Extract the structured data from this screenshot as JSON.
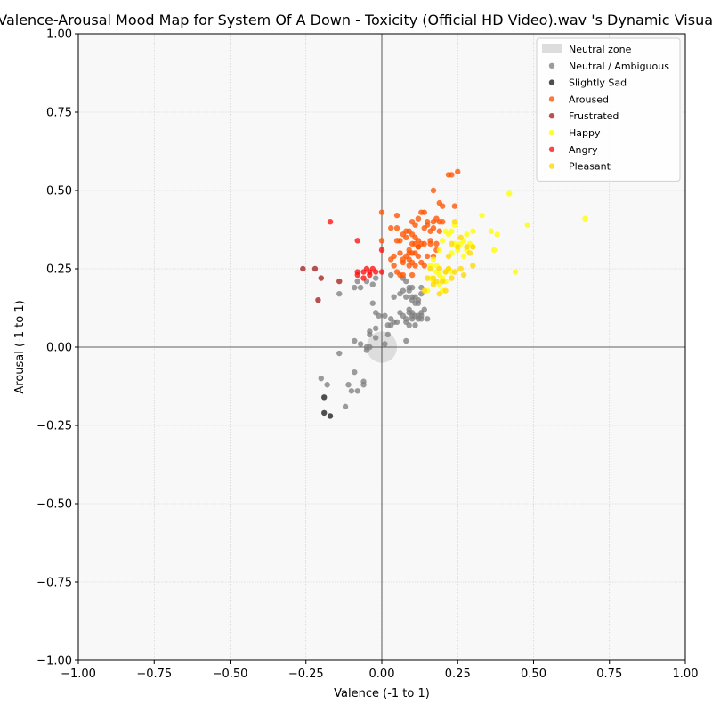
{
  "chart_data": {
    "type": "scatter",
    "title": "Valence-Arousal Mood Map for System Of A Down - Toxicity (Official HD Video).wav 's Dynamic Visualization",
    "xlabel": "Valence (-1 to 1)",
    "ylabel": "Arousal (-1 to 1)",
    "xlim": [
      -1,
      1
    ],
    "ylim": [
      -1,
      1
    ],
    "xticks": [
      -1.0,
      -0.75,
      -0.5,
      -0.25,
      0.0,
      0.25,
      0.5,
      0.75,
      1.0
    ],
    "yticks": [
      -1.0,
      -0.75,
      -0.5,
      -0.25,
      0.0,
      0.25,
      0.5,
      0.75,
      1.0
    ],
    "xtick_labels": [
      "−1.00",
      "−0.75",
      "−0.50",
      "−0.25",
      "0.00",
      "0.25",
      "0.50",
      "0.75",
      "1.00"
    ],
    "ytick_labels": [
      "−1.00",
      "−0.75",
      "−0.50",
      "−0.25",
      "0.00",
      "0.25",
      "0.50",
      "0.75",
      "1.00"
    ],
    "grid": true,
    "legend_position": "top-right",
    "neutral_zone": {
      "label": "Neutral zone",
      "center": [
        0,
        0
      ],
      "radius": 0.05
    },
    "series": [
      {
        "name": "Neutral / Ambiguous",
        "color": "#808080",
        "points": [
          [
            -0.2,
            -0.1
          ],
          [
            -0.18,
            -0.12
          ],
          [
            -0.14,
            -0.02
          ],
          [
            -0.12,
            -0.19
          ],
          [
            -0.11,
            -0.12
          ],
          [
            -0.1,
            -0.14
          ],
          [
            -0.09,
            -0.08
          ],
          [
            -0.08,
            -0.14
          ],
          [
            -0.06,
            -0.12
          ],
          [
            -0.06,
            -0.11
          ],
          [
            -0.09,
            0.02
          ],
          [
            -0.07,
            0.01
          ],
          [
            -0.05,
            0.0
          ],
          [
            -0.05,
            -0.01
          ],
          [
            -0.04,
            0.0
          ],
          [
            -0.04,
            0.05
          ],
          [
            -0.04,
            0.04
          ],
          [
            -0.02,
            0.03
          ],
          [
            -0.02,
            0.06
          ],
          [
            -0.01,
            0.1
          ],
          [
            -0.02,
            0.11
          ],
          [
            -0.03,
            0.14
          ],
          [
            0.01,
            0.01
          ],
          [
            0.02,
            0.04
          ],
          [
            0.02,
            0.07
          ],
          [
            0.03,
            0.09
          ],
          [
            0.04,
            0.08
          ],
          [
            0.05,
            0.08
          ],
          [
            0.06,
            0.11
          ],
          [
            0.07,
            0.1
          ],
          [
            0.08,
            0.09
          ],
          [
            0.08,
            0.02
          ],
          [
            0.09,
            0.07
          ],
          [
            0.09,
            0.11
          ],
          [
            0.1,
            0.09
          ],
          [
            0.1,
            0.11
          ],
          [
            0.11,
            0.07
          ],
          [
            0.11,
            0.1
          ],
          [
            0.12,
            0.09
          ],
          [
            0.13,
            0.11
          ],
          [
            0.13,
            0.1
          ],
          [
            0.14,
            0.12
          ],
          [
            0.15,
            0.09
          ],
          [
            0.01,
            0.1
          ],
          [
            0.03,
            0.07
          ],
          [
            0.08,
            0.08
          ],
          [
            0.09,
            0.12
          ],
          [
            0.1,
            0.1
          ],
          [
            0.12,
            0.1
          ],
          [
            0.13,
            0.09
          ],
          [
            -0.14,
            0.17
          ],
          [
            -0.09,
            0.19
          ],
          [
            -0.07,
            0.19
          ],
          [
            -0.08,
            0.21
          ],
          [
            -0.05,
            0.21
          ],
          [
            -0.03,
            0.2
          ],
          [
            -0.02,
            0.22
          ],
          [
            0.03,
            0.23
          ],
          [
            0.04,
            0.16
          ],
          [
            0.06,
            0.17
          ],
          [
            0.07,
            0.18
          ],
          [
            0.08,
            0.16
          ],
          [
            0.09,
            0.19
          ],
          [
            0.1,
            0.19
          ],
          [
            0.1,
            0.16
          ],
          [
            0.11,
            0.14
          ],
          [
            0.12,
            0.14
          ],
          [
            0.12,
            0.15
          ],
          [
            0.13,
            0.17
          ],
          [
            0.13,
            0.19
          ],
          [
            0.08,
            0.21
          ],
          [
            0.09,
            0.18
          ],
          [
            0.1,
            0.15
          ],
          [
            0.11,
            0.16
          ],
          [
            0.07,
            0.22
          ]
        ]
      },
      {
        "name": "Slightly Sad",
        "color": "#1e1e1e",
        "points": [
          [
            -0.19,
            -0.16
          ],
          [
            -0.19,
            -0.21
          ],
          [
            -0.17,
            -0.22
          ]
        ]
      },
      {
        "name": "Aroused",
        "color": "#ff5500",
        "points": [
          [
            0.0,
            0.43
          ],
          [
            0.0,
            0.34
          ],
          [
            0.03,
            0.38
          ],
          [
            0.05,
            0.42
          ],
          [
            0.05,
            0.38
          ],
          [
            0.05,
            0.34
          ],
          [
            0.06,
            0.34
          ],
          [
            0.07,
            0.36
          ],
          [
            0.08,
            0.35
          ],
          [
            0.08,
            0.37
          ],
          [
            0.09,
            0.37
          ],
          [
            0.09,
            0.31
          ],
          [
            0.1,
            0.4
          ],
          [
            0.1,
            0.36
          ],
          [
            0.1,
            0.33
          ],
          [
            0.11,
            0.39
          ],
          [
            0.11,
            0.35
          ],
          [
            0.12,
            0.41
          ],
          [
            0.12,
            0.34
          ],
          [
            0.12,
            0.32
          ],
          [
            0.13,
            0.43
          ],
          [
            0.13,
            0.33
          ],
          [
            0.14,
            0.43
          ],
          [
            0.14,
            0.38
          ],
          [
            0.14,
            0.33
          ],
          [
            0.15,
            0.39
          ],
          [
            0.15,
            0.4
          ],
          [
            0.16,
            0.37
          ],
          [
            0.16,
            0.34
          ],
          [
            0.17,
            0.5
          ],
          [
            0.17,
            0.4
          ],
          [
            0.17,
            0.38
          ],
          [
            0.18,
            0.33
          ],
          [
            0.18,
            0.41
          ],
          [
            0.19,
            0.46
          ],
          [
            0.19,
            0.4
          ],
          [
            0.19,
            0.37
          ],
          [
            0.2,
            0.45
          ],
          [
            0.2,
            0.4
          ],
          [
            0.22,
            0.55
          ],
          [
            0.23,
            0.55
          ],
          [
            0.24,
            0.45
          ],
          [
            0.25,
            0.56
          ],
          [
            0.03,
            0.28
          ],
          [
            0.04,
            0.29
          ],
          [
            0.04,
            0.26
          ],
          [
            0.05,
            0.24
          ],
          [
            0.06,
            0.23
          ],
          [
            0.07,
            0.27
          ],
          [
            0.07,
            0.23
          ],
          [
            0.08,
            0.29
          ],
          [
            0.09,
            0.28
          ],
          [
            0.09,
            0.3
          ],
          [
            0.1,
            0.27
          ],
          [
            0.1,
            0.23
          ],
          [
            0.11,
            0.26
          ],
          [
            0.11,
            0.3
          ],
          [
            0.12,
            0.32
          ],
          [
            0.12,
            0.29
          ],
          [
            0.13,
            0.27
          ],
          [
            0.14,
            0.26
          ],
          [
            0.15,
            0.29
          ],
          [
            0.16,
            0.33
          ],
          [
            0.17,
            0.29
          ],
          [
            0.18,
            0.31
          ],
          [
            0.06,
            0.3
          ],
          [
            0.07,
            0.28
          ],
          [
            0.09,
            0.26
          ],
          [
            0.1,
            0.3
          ],
          [
            0.11,
            0.33
          ]
        ]
      },
      {
        "name": "Frustrated",
        "color": "#a52020",
        "points": [
          [
            -0.26,
            0.25
          ],
          [
            -0.22,
            0.25
          ],
          [
            -0.2,
            0.22
          ],
          [
            -0.21,
            0.15
          ],
          [
            -0.14,
            0.21
          ]
        ]
      },
      {
        "name": "Happy",
        "color": "#ffff00",
        "points": [
          [
            0.15,
            0.18
          ],
          [
            0.16,
            0.22
          ],
          [
            0.17,
            0.21
          ],
          [
            0.18,
            0.24
          ],
          [
            0.19,
            0.23
          ],
          [
            0.19,
            0.2
          ],
          [
            0.2,
            0.22
          ],
          [
            0.2,
            0.18
          ],
          [
            0.21,
            0.24
          ],
          [
            0.21,
            0.21
          ],
          [
            0.22,
            0.25
          ],
          [
            0.23,
            0.24
          ],
          [
            0.23,
            0.3
          ],
          [
            0.24,
            0.33
          ],
          [
            0.25,
            0.31
          ],
          [
            0.26,
            0.33
          ],
          [
            0.27,
            0.34
          ],
          [
            0.27,
            0.29
          ],
          [
            0.28,
            0.31
          ],
          [
            0.28,
            0.36
          ],
          [
            0.29,
            0.33
          ],
          [
            0.3,
            0.32
          ],
          [
            0.3,
            0.37
          ],
          [
            0.24,
            0.39
          ],
          [
            0.23,
            0.37
          ],
          [
            0.22,
            0.36
          ],
          [
            0.33,
            0.42
          ],
          [
            0.36,
            0.37
          ],
          [
            0.37,
            0.31
          ],
          [
            0.38,
            0.36
          ],
          [
            0.42,
            0.49
          ],
          [
            0.44,
            0.24
          ],
          [
            0.48,
            0.39
          ],
          [
            0.67,
            0.41
          ],
          [
            0.17,
            0.28
          ],
          [
            0.18,
            0.26
          ],
          [
            0.19,
            0.31
          ],
          [
            0.2,
            0.34
          ],
          [
            0.21,
            0.37
          ],
          [
            0.16,
            0.26
          ]
        ]
      },
      {
        "name": "Angry",
        "color": "#ff1010",
        "points": [
          [
            -0.17,
            0.4
          ],
          [
            -0.08,
            0.34
          ],
          [
            -0.08,
            0.24
          ],
          [
            -0.08,
            0.23
          ],
          [
            -0.06,
            0.22
          ],
          [
            -0.05,
            0.25
          ],
          [
            -0.04,
            0.24
          ],
          [
            -0.03,
            0.25
          ],
          [
            -0.02,
            0.24
          ],
          [
            0.0,
            0.31
          ],
          [
            0.0,
            0.24
          ],
          [
            -0.04,
            0.23
          ],
          [
            -0.06,
            0.24
          ]
        ]
      },
      {
        "name": "Pleasant",
        "color": "#ffd700",
        "points": [
          [
            0.14,
            0.18
          ],
          [
            0.16,
            0.25
          ],
          [
            0.17,
            0.22
          ],
          [
            0.18,
            0.21
          ],
          [
            0.19,
            0.25
          ],
          [
            0.2,
            0.21
          ],
          [
            0.21,
            0.24
          ],
          [
            0.22,
            0.25
          ],
          [
            0.23,
            0.22
          ],
          [
            0.24,
            0.24
          ],
          [
            0.25,
            0.32
          ],
          [
            0.26,
            0.25
          ],
          [
            0.27,
            0.23
          ],
          [
            0.28,
            0.32
          ],
          [
            0.29,
            0.3
          ],
          [
            0.3,
            0.26
          ],
          [
            0.3,
            0.32
          ],
          [
            0.23,
            0.33
          ],
          [
            0.22,
            0.29
          ],
          [
            0.21,
            0.18
          ],
          [
            0.19,
            0.17
          ],
          [
            0.17,
            0.2
          ],
          [
            0.15,
            0.22
          ],
          [
            0.24,
            0.4
          ],
          [
            0.26,
            0.35
          ]
        ]
      }
    ]
  }
}
